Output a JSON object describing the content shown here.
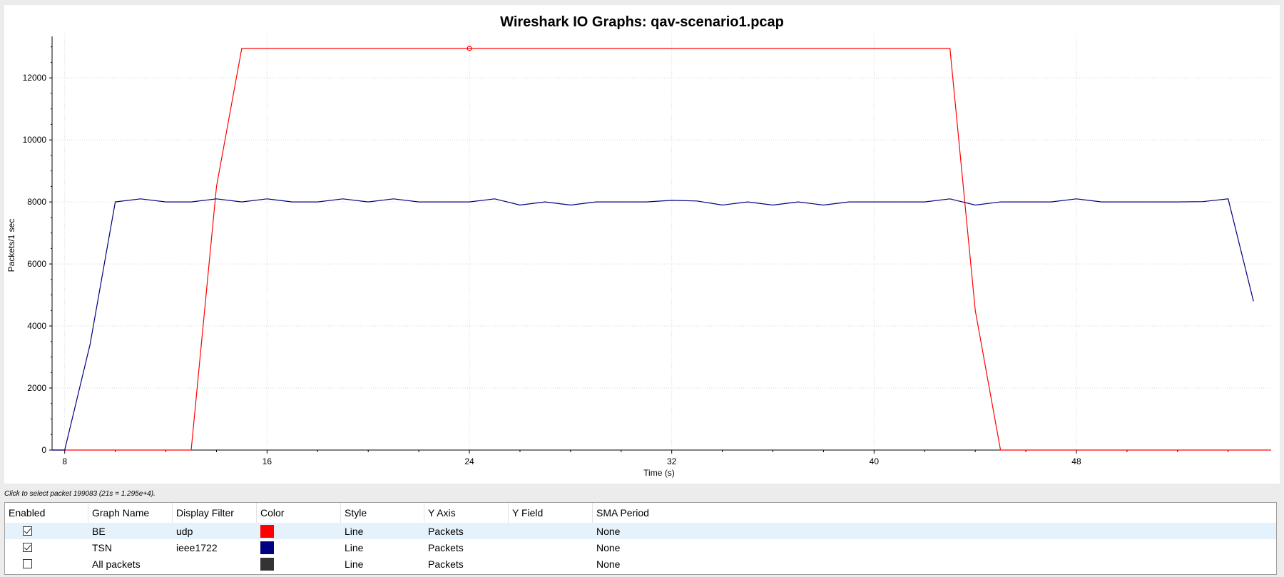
{
  "window": {
    "status_hint": "Click to select packet 199083 (21s = 1.295e+4)."
  },
  "chart_data": {
    "type": "line",
    "title": "Wireshark IO Graphs: qav-scenario1.pcap",
    "xlabel": "Time (s)",
    "ylabel": "Packets/1 sec",
    "xlim": [
      7.5,
      55.7
    ],
    "ylim": [
      0,
      13200
    ],
    "x_ticks": [
      8,
      16,
      24,
      32,
      40,
      48
    ],
    "y_ticks": [
      0,
      2000,
      4000,
      6000,
      8000,
      10000,
      12000
    ],
    "grid": true,
    "series": [
      {
        "name": "BE",
        "color": "#ff0000",
        "x": [
          7.5,
          8,
          9,
          10,
          11,
          12,
          13,
          14,
          15,
          16,
          17,
          18,
          19,
          20,
          21,
          22,
          23,
          24,
          25,
          26,
          27,
          28,
          29,
          30,
          31,
          32,
          33,
          34,
          35,
          36,
          37,
          38,
          39,
          40,
          41,
          42,
          43,
          44,
          45,
          46,
          47,
          48,
          49,
          50,
          51,
          52,
          53,
          54,
          55,
          55.7
        ],
        "values": [
          0,
          0,
          0,
          0,
          0,
          0,
          0,
          8500,
          12950,
          12950,
          12950,
          12950,
          12950,
          12950,
          12950,
          12950,
          12950,
          12950,
          12950,
          12950,
          12950,
          12950,
          12950,
          12950,
          12950,
          12950,
          12950,
          12950,
          12950,
          12950,
          12950,
          12950,
          12950,
          12950,
          12950,
          12950,
          12950,
          4500,
          0,
          0,
          0,
          0,
          0,
          0,
          0,
          0,
          0,
          0,
          0,
          0
        ],
        "marker": {
          "x": 24,
          "y": 12950
        }
      },
      {
        "name": "TSN",
        "color": "#000080",
        "x": [
          7.5,
          8,
          9,
          10,
          11,
          12,
          13,
          14,
          15,
          16,
          17,
          18,
          19,
          20,
          21,
          22,
          23,
          24,
          25,
          26,
          27,
          28,
          29,
          30,
          31,
          32,
          33,
          34,
          35,
          36,
          37,
          38,
          39,
          40,
          41,
          42,
          43,
          44,
          45,
          46,
          47,
          48,
          49,
          50,
          51,
          52,
          53,
          54,
          55
        ],
        "values": [
          0,
          0,
          3400,
          8000,
          8100,
          8000,
          8000,
          8100,
          8000,
          8100,
          8000,
          8000,
          8100,
          8000,
          8100,
          8000,
          8000,
          8000,
          8100,
          7900,
          8000,
          7900,
          8000,
          8000,
          8000,
          8050,
          8030,
          7900,
          8000,
          7900,
          8000,
          7900,
          8000,
          8000,
          8000,
          8000,
          8100,
          7900,
          8000,
          8000,
          8000,
          8100,
          8000,
          8000,
          8000,
          8000,
          8010,
          8100,
          4800
        ]
      }
    ]
  },
  "table": {
    "headers": [
      "Enabled",
      "Graph Name",
      "Display Filter",
      "Color",
      "Style",
      "Y Axis",
      "Y Field",
      "SMA Period"
    ],
    "rows": [
      {
        "enabled": true,
        "name": "BE",
        "filter": "udp",
        "color": "#ff0000",
        "style": "Line",
        "y_axis": "Packets",
        "y_field": "",
        "sma": "None"
      },
      {
        "enabled": true,
        "name": "TSN",
        "filter": "ieee1722",
        "color": "#000080",
        "style": "Line",
        "y_axis": "Packets",
        "y_field": "",
        "sma": "None"
      },
      {
        "enabled": false,
        "name": "All packets",
        "filter": "",
        "color": "#333333",
        "style": "Line",
        "y_axis": "Packets",
        "y_field": "",
        "sma": "None"
      }
    ]
  }
}
